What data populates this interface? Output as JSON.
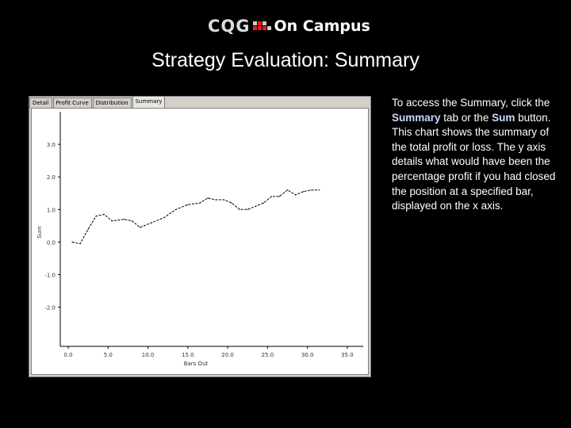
{
  "header": {
    "logo_cqg": "CQG",
    "logo_oncampus": "On Campus"
  },
  "slide_title": "Strategy Evaluation: Summary",
  "tabs": [
    {
      "label": "Detail",
      "active": false
    },
    {
      "label": "Profit Curve",
      "active": false
    },
    {
      "label": "Distribution",
      "active": false
    },
    {
      "label": "Summary",
      "active": true
    }
  ],
  "body": {
    "part1": "To access the Summary, click the ",
    "summary_word": "Summary",
    "part2": " tab or the ",
    "sum_word": "Sum",
    "part3": " button. This chart shows the summary of the total profit or loss. The y axis details what would have been the percentage profit if you had closed the position at a specified bar, displayed on the x axis."
  },
  "colors": {
    "background": "#000000",
    "highlight": "#c8d8ff",
    "window": "#d4d0c8",
    "line": "#000000"
  },
  "chart_data": {
    "type": "line",
    "xlabel": "Bars Out",
    "ylabel": "Sum",
    "x_ticks": [
      "0.0",
      "5.0",
      "10.0",
      "15.0",
      "20.0",
      "25.0",
      "30.0",
      "35.0"
    ],
    "y_ticks": [
      "3.0",
      "2.0",
      "1.0",
      "0.0",
      "-1.0",
      "-2.0"
    ],
    "xlim": [
      -1,
      37
    ],
    "ylim": [
      -3.2,
      4.0
    ],
    "series": [
      {
        "values": [
          [
            0.5,
            0.0
          ],
          [
            1.5,
            -0.05
          ],
          [
            2.5,
            0.4
          ],
          [
            3.5,
            0.8
          ],
          [
            4.5,
            0.85
          ],
          [
            5.5,
            0.65
          ],
          [
            7.0,
            0.7
          ],
          [
            8.0,
            0.65
          ],
          [
            9.0,
            0.45
          ],
          [
            10.5,
            0.6
          ],
          [
            12.0,
            0.75
          ],
          [
            13.5,
            1.0
          ],
          [
            15.0,
            1.15
          ],
          [
            16.5,
            1.2
          ],
          [
            17.5,
            1.35
          ],
          [
            18.5,
            1.3
          ],
          [
            19.5,
            1.3
          ],
          [
            20.5,
            1.2
          ],
          [
            21.5,
            1.0
          ],
          [
            22.5,
            1.0
          ],
          [
            23.5,
            1.1
          ],
          [
            24.5,
            1.2
          ],
          [
            25.5,
            1.4
          ],
          [
            26.5,
            1.4
          ],
          [
            27.5,
            1.6
          ],
          [
            28.5,
            1.45
          ],
          [
            29.5,
            1.55
          ],
          [
            30.5,
            1.6
          ],
          [
            31.5,
            1.6
          ]
        ]
      }
    ]
  }
}
